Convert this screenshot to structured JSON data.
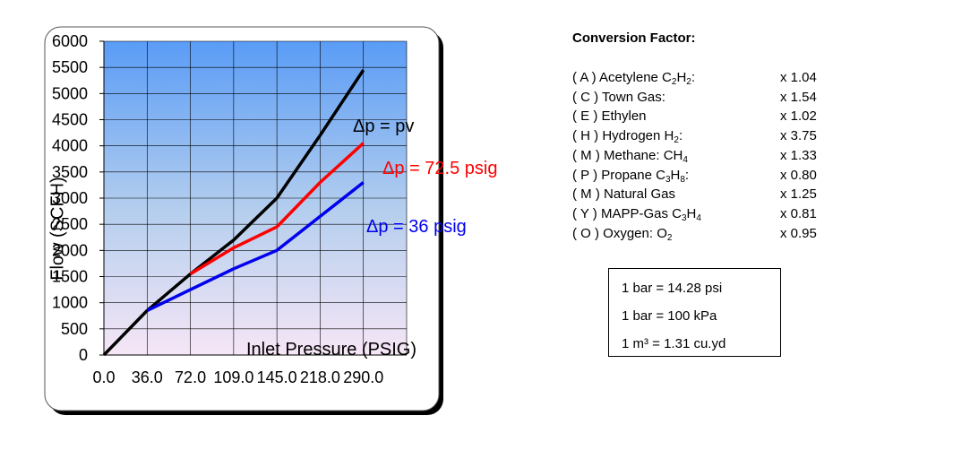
{
  "chart_data": {
    "type": "line",
    "categories": [
      "0.0",
      "36.0",
      "72.0",
      "109.0",
      "145.0",
      "218.0",
      "290.0"
    ],
    "x": [
      0,
      36,
      72,
      109,
      145,
      218,
      290
    ],
    "xlabel": "Inlet Pressure (PSIG)",
    "ylabel": "Flow (SCFH)",
    "ylim": [
      0,
      6000
    ],
    "yticks": [
      "0",
      "500",
      "1000",
      "1500",
      "2000",
      "2500",
      "3000",
      "3500",
      "4000",
      "4500",
      "5000",
      "5500",
      "6000"
    ],
    "grid": true,
    "series": [
      {
        "name": "Δp = pv",
        "color": "#000000",
        "values": [
          0,
          850,
          1550,
          2200,
          3000,
          4200,
          5450
        ]
      },
      {
        "name": "Δp = 72.5 psig",
        "color": "#ff0000",
        "values": [
          null,
          null,
          1550,
          2050,
          2450,
          3300,
          4050
        ]
      },
      {
        "name": "Δp = 36 psig",
        "color": "#0000ee",
        "values": [
          null,
          850,
          1250,
          1650,
          2000,
          2650,
          3300
        ]
      }
    ]
  },
  "conversion": {
    "title": "Conversion Factor:",
    "rows": [
      {
        "code": "( A )",
        "name": "Acetylene C",
        "formula": [
          [
            "2",
            true
          ],
          [
            "H",
            false
          ],
          [
            "2",
            true
          ],
          [
            ":",
            false
          ]
        ],
        "factor": "x 1.04"
      },
      {
        "code": "( C )",
        "name": "Town Gas:",
        "formula": [],
        "factor": "x 1.54"
      },
      {
        "code": "( E )",
        "name": "Ethylen",
        "formula": [],
        "factor": "x 1.02"
      },
      {
        "code": "( H )",
        "name": "Hydrogen H",
        "formula": [
          [
            "2",
            true
          ],
          [
            ":",
            false
          ]
        ],
        "factor": "x 3.75"
      },
      {
        "code": "( M )",
        "name": "Methane: CH",
        "formula": [
          [
            "4",
            true
          ]
        ],
        "factor": "x 1.33"
      },
      {
        "code": "( P )",
        "name": "Propane C",
        "formula": [
          [
            "3",
            true
          ],
          [
            "H",
            false
          ],
          [
            "8",
            true
          ],
          [
            ":",
            false
          ]
        ],
        "factor": "x 0.80"
      },
      {
        "code": "( M )",
        "name": "Natural Gas",
        "formula": [],
        "factor": "x 1.25"
      },
      {
        "code": "( Y )",
        "name": "MAPP-Gas C",
        "formula": [
          [
            "3",
            true
          ],
          [
            "H",
            false
          ],
          [
            "4",
            true
          ]
        ],
        "factor": "x 0.81"
      },
      {
        "code": "( O )",
        "name": "Oxygen: O",
        "formula": [
          [
            "2",
            true
          ]
        ],
        "factor": "x 0.95"
      }
    ]
  },
  "units": {
    "bar_psi": "1 bar = 14.28 psi",
    "bar_kpa": "1 bar = 100 kPa",
    "m3_yd": "1 m³ =  1.31 cu.yd"
  }
}
